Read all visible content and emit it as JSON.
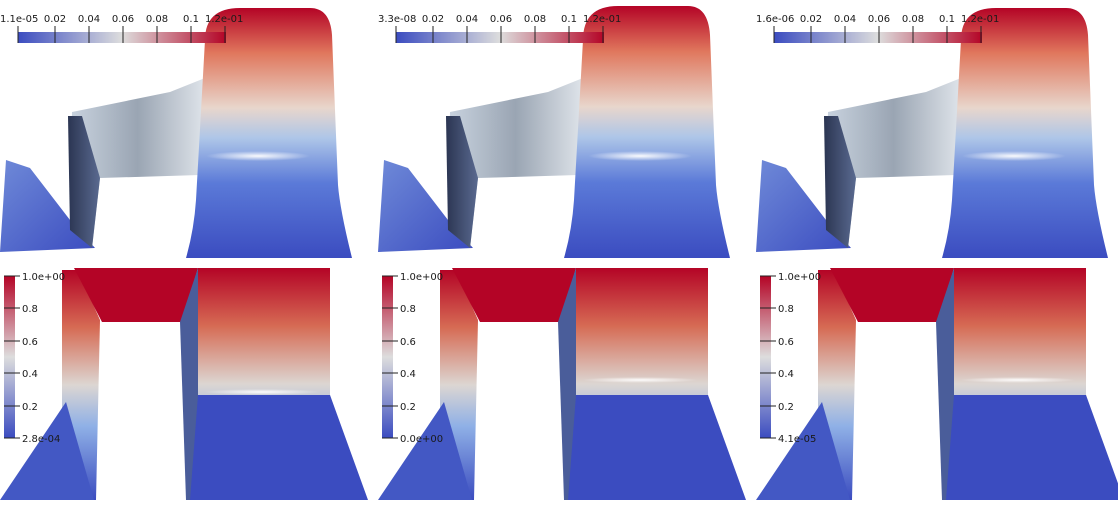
{
  "colormap": {
    "low": "#3b4cc0",
    "mid": "#dddddd",
    "high": "#b40426"
  },
  "top_colorbar_ticks": [
    "0.02",
    "0.04",
    "0.06",
    "0.08",
    "0.1"
  ],
  "bottom_colorbar_ticks": [
    "0.8",
    "0.6",
    "0.4",
    "0.2"
  ],
  "panels": [
    {
      "id": "top-left",
      "min_label": "1.1e-05",
      "max_label": "1.2e-01"
    },
    {
      "id": "top-middle",
      "min_label": "3.3e-08",
      "max_label": "1.2e-01"
    },
    {
      "id": "top-right",
      "min_label": "1.6e-06",
      "max_label": "1.2e-01"
    },
    {
      "id": "bottom-left",
      "min_label": "2.8e-04",
      "max_label": "1.0e+00"
    },
    {
      "id": "bottom-middle",
      "min_label": "0.0e+00",
      "max_label": "1.0e+00"
    },
    {
      "id": "bottom-right",
      "min_label": "4.1e-05",
      "max_label": "1.0e+00"
    }
  ]
}
